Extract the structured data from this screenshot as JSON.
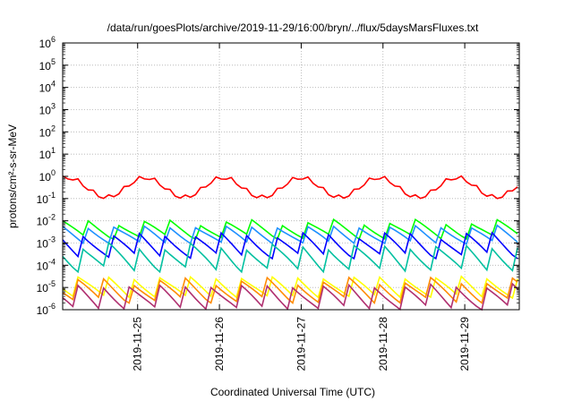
{
  "chart_data": {
    "type": "line",
    "title": "/data/run/goesPlots/archive/2019-11-29/16:00/bryn/../flux/5daysMarsFluxes.txt",
    "xlabel": "Coordinated Universal Time (UTC)",
    "ylabel": "protons/cm²-s-sr-MeV",
    "yscale": "log",
    "ylim": [
      1e-06,
      1000000.0
    ],
    "ytick_labels": [
      {
        "value": 1e-06,
        "base": "10",
        "exp": "-6"
      },
      {
        "value": 1e-05,
        "base": "10",
        "exp": "-5"
      },
      {
        "value": 0.0001,
        "base": "10",
        "exp": "-4"
      },
      {
        "value": 0.001,
        "base": "10",
        "exp": "-3"
      },
      {
        "value": 0.01,
        "base": "10",
        "exp": "-2"
      },
      {
        "value": 0.1,
        "base": "10",
        "exp": "-1"
      },
      {
        "value": 1,
        "base": "10",
        "exp": "0"
      },
      {
        "value": 10.0,
        "base": "10",
        "exp": "1"
      },
      {
        "value": 100.0,
        "base": "10",
        "exp": "2"
      },
      {
        "value": 1000.0,
        "base": "10",
        "exp": "3"
      },
      {
        "value": 10000.0,
        "base": "10",
        "exp": "4"
      },
      {
        "value": 100000.0,
        "base": "10",
        "exp": "5"
      },
      {
        "value": 1000000.0,
        "base": "10",
        "exp": "6"
      }
    ],
    "xlim": [
      "2019-11-24T02:00",
      "2019-11-29T16:00"
    ],
    "xtick_labels": [
      "2019-11-25",
      "2019-11-26",
      "2019-11-27",
      "2019-11-28",
      "2019-11-29"
    ],
    "grid": true,
    "series": [
      {
        "color": "#ff0000",
        "min": 0.1,
        "max": 1.1
      },
      {
        "color": "#00ff00",
        "min": 0.0015,
        "max": 0.012
      },
      {
        "color": "#1e90ff",
        "min": 0.0009,
        "max": 0.008
      },
      {
        "color": "#0000ff",
        "min": 0.0002,
        "max": 0.0035
      },
      {
        "color": "#00c0a0",
        "min": 5e-05,
        "max": 0.0012
      },
      {
        "color": "#ffff00",
        "min": 3e-06,
        "max": 4e-05
      },
      {
        "color": "#ff8c00",
        "min": 2e-06,
        "max": 3e-05
      },
      {
        "color": "#b03070",
        "min": 1e-06,
        "max": 2e-05
      }
    ]
  }
}
